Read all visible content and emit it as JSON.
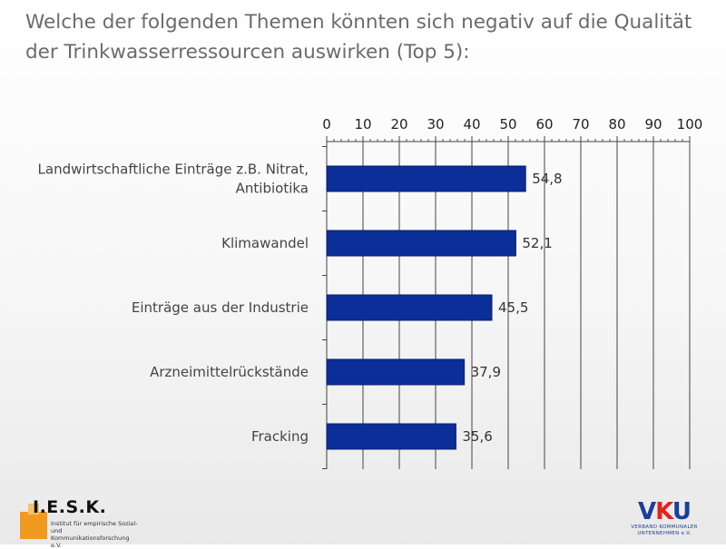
{
  "title": "Welche der folgenden Themen könnten sich negativ auf die Qualität der Trinkwasserressourcen auswirken (Top 5):",
  "chart_data": {
    "type": "bar",
    "orientation": "horizontal",
    "title": "Welche der folgenden Themen könnten sich negativ auf die Qualität der Trinkwasserressourcen auswirken (Top 5):",
    "categories": [
      [
        "Landwirtschaftliche Einträge z.B. Nitrat,",
        "Antibiotika"
      ],
      [
        "Klimawandel"
      ],
      [
        "Einträge aus der Industrie"
      ],
      [
        "Arzneimittelrückstände"
      ],
      [
        "Fracking"
      ]
    ],
    "values": [
      54.8,
      52.1,
      45.5,
      37.9,
      35.6
    ],
    "value_labels": [
      "54,8",
      "52,1",
      "45,5",
      "37,9",
      "35,6"
    ],
    "xlim": [
      0,
      100
    ],
    "ticks": [
      0,
      10,
      20,
      30,
      40,
      50,
      60,
      70,
      80,
      90,
      100
    ],
    "axis_position": "top",
    "grid": true,
    "bar_color": "#0b2e99"
  },
  "logos": {
    "iesk": {
      "name": "I.E.S.K.",
      "subtitle_line1": "Institut für empirische Sozial-",
      "subtitle_line2": "und Kommunikationsforschung e.V."
    },
    "vku": {
      "mark_v": "V",
      "mark_k": "K",
      "mark_u": "U",
      "subtitle_line1": "VERBAND KOMMUNALER",
      "subtitle_line2": "UNTERNEHMEN e.V."
    }
  }
}
